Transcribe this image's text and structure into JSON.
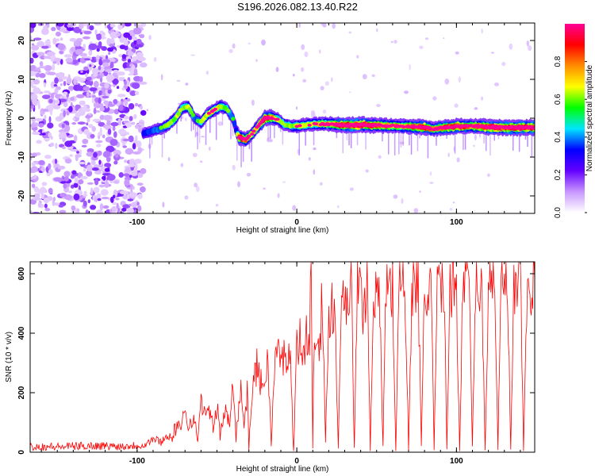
{
  "page": {
    "title": "S196.2026.082.13.40.R22"
  },
  "chart_data": [
    {
      "type": "heatmap",
      "name": "spectrogram",
      "title": "S196.2026.082.13.40.R22",
      "xlabel": "Height of straight line (km)",
      "ylabel": "Frequency (Hz)",
      "xlim": [
        -167,
        149
      ],
      "ylim": [
        -24.5,
        24.5
      ],
      "x_ticks": [
        -100,
        0,
        100
      ],
      "y_ticks": [
        -20,
        -10,
        0,
        10,
        20
      ],
      "noise_region_x": [
        -167,
        -96
      ],
      "ridge": {
        "x": [
          -96,
          -92,
          -88,
          -84,
          -80,
          -76,
          -72,
          -68,
          -64,
          -60,
          -56,
          -52,
          -48,
          -44,
          -40,
          -38,
          -36,
          -32,
          -28,
          -24,
          -20,
          -16,
          -12,
          -8,
          -4,
          0,
          10,
          20,
          30,
          40,
          50,
          60,
          70,
          80,
          85,
          90,
          100,
          110,
          120,
          130,
          140,
          149
        ],
        "y": [
          -4,
          -3.5,
          -3,
          -2.5,
          -1.5,
          0,
          2.5,
          3,
          0,
          -1,
          1,
          2,
          3,
          2.5,
          0,
          -3,
          -5,
          -5.5,
          -4,
          -2,
          0,
          0.2,
          -0.3,
          -1.5,
          -2,
          -2,
          -1.5,
          -1.5,
          -1.8,
          -1.7,
          -1.8,
          -2,
          -2.1,
          -2.3,
          -2.8,
          -2.5,
          -2.1,
          -2,
          -2.3,
          -2.4,
          -2.4,
          -2.4
        ],
        "amplitude": [
          0.3,
          0.35,
          0.4,
          0.45,
          0.5,
          0.55,
          0.5,
          0.6,
          0.4,
          0.5,
          0.6,
          0.65,
          0.6,
          0.5,
          0.4,
          0.3,
          0.9,
          0.8,
          0.6,
          0.7,
          0.95,
          0.8,
          0.6,
          0.5,
          0.5,
          0.6,
          0.6,
          0.7,
          0.9,
          0.95,
          0.8,
          0.7,
          0.75,
          0.9,
          0.7,
          0.8,
          0.9,
          0.75,
          0.95,
          0.9,
          0.95,
          0.9
        ]
      },
      "colorbar": {
        "label": "Normalized spectral amplitude",
        "range": [
          0.0,
          1.0
        ],
        "ticks": [
          "0.0",
          "0.2",
          "0.4",
          "0.6",
          "0.8"
        ],
        "colors": [
          "#ffffff",
          "#c896ff",
          "#6400ff",
          "#0000ff",
          "#00e6ff",
          "#00ff00",
          "#ffff00",
          "#ff8c00",
          "#ff0000",
          "#ff0096"
        ]
      }
    },
    {
      "type": "line",
      "name": "snr",
      "xlabel": "Height of straight line (km)",
      "ylabel": "SNR (10 * v/v)",
      "xlim": [
        -167,
        149
      ],
      "ylim": [
        0,
        640
      ],
      "x_ticks": [
        -100,
        0,
        100
      ],
      "y_ticks": [
        0,
        200,
        400,
        600
      ],
      "color": "#ff0000",
      "series": [
        {
          "name": "SNR",
          "x": [
            -167,
            -150,
            -130,
            -110,
            -95,
            -90,
            -85,
            -80,
            -78,
            -75,
            -73,
            -70,
            -68,
            -65,
            -62,
            -60,
            -57,
            -55,
            -52,
            -50,
            -48,
            -45,
            -42,
            -40,
            -38,
            -35,
            -33,
            -31,
            -30,
            -28,
            -25,
            -22,
            -20,
            -18,
            -16,
            -14,
            -12,
            -10,
            -8,
            -6,
            -4,
            -2,
            0,
            2,
            4,
            6,
            8,
            9,
            10,
            11,
            12,
            14,
            16,
            18,
            20,
            22,
            24,
            26,
            28,
            30,
            32,
            34,
            36,
            38,
            40,
            42,
            44,
            46,
            48,
            50,
            52,
            54,
            56,
            58,
            60,
            62,
            64,
            66,
            68,
            70,
            72,
            74,
            76,
            78,
            80,
            82,
            84,
            86,
            88,
            90,
            92,
            94,
            96,
            98,
            100,
            102,
            104,
            106,
            108,
            110,
            112,
            114,
            116,
            118,
            120,
            122,
            124,
            126,
            128,
            130,
            132,
            134,
            136,
            138,
            140,
            142,
            144,
            146,
            149
          ],
          "y": [
            20,
            18,
            22,
            20,
            25,
            45,
            35,
            60,
            40,
            100,
            60,
            150,
            90,
            120,
            40,
            180,
            110,
            150,
            70,
            160,
            60,
            140,
            90,
            270,
            60,
            220,
            90,
            200,
            10,
            210,
            290,
            220,
            250,
            310,
            20,
            280,
            350,
            300,
            320,
            340,
            290,
            10,
            370,
            380,
            300,
            420,
            350,
            640,
            20,
            400,
            460,
            380,
            500,
            20,
            460,
            520,
            430,
            20,
            540,
            580,
            500,
            600,
            20,
            560,
            520,
            480,
            600,
            10,
            560,
            500,
            480,
            20,
            600,
            560,
            530,
            10,
            570,
            560,
            520,
            10,
            560,
            540,
            590,
            10,
            540,
            520,
            600,
            10,
            520,
            560,
            600,
            10,
            600,
            560,
            540,
            10,
            550,
            610,
            560,
            10,
            610,
            570,
            520,
            10,
            560,
            600,
            610,
            10,
            570,
            580,
            530,
            10,
            520,
            560,
            600,
            10,
            480,
            560,
            580
          ]
        }
      ]
    }
  ]
}
